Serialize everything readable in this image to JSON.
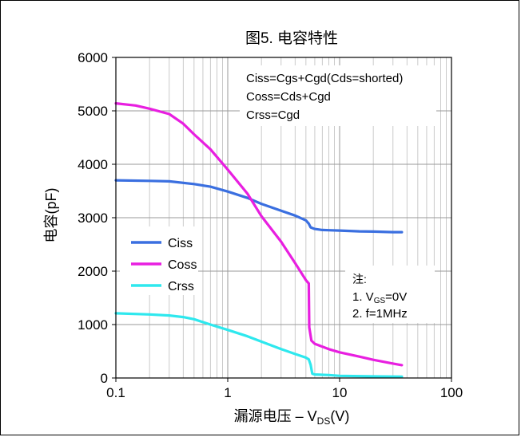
{
  "chart_data": {
    "type": "line",
    "title": "图5. 电容特性",
    "xlabel": "漏源电压  – V",
    "xlabel_sub": "DS",
    "xlabel_tail": "(V)",
    "ylabel": "电容(pF)",
    "x_scale": "log",
    "xlim": [
      0.1,
      100
    ],
    "ylim": [
      0,
      6000
    ],
    "x_ticks": [
      0.1,
      1,
      10,
      100
    ],
    "x_tick_labels": [
      "0.1",
      "1",
      "10",
      "100"
    ],
    "y_ticks": [
      0,
      1000,
      2000,
      3000,
      4000,
      5000,
      6000
    ],
    "y_tick_labels": [
      "0",
      "1000",
      "2000",
      "3000",
      "4000",
      "5000",
      "6000"
    ],
    "grid": true,
    "legend_position": "left-lower",
    "formulas": [
      "Ciss=Cgs+Cgd(Cds=shorted)",
      "Coss=Cds+Cgd",
      "Crss=Cgd"
    ],
    "note": {
      "heading": "注:",
      "line1_prefix": "1. V",
      "line1_sub": "GS",
      "line1_suffix": "=0V",
      "line2": "2. f=1MHz"
    },
    "series": [
      {
        "name": "Ciss",
        "color": "#3a6fe0",
        "points": [
          [
            0.1,
            3700
          ],
          [
            0.2,
            3690
          ],
          [
            0.3,
            3680
          ],
          [
            0.5,
            3630
          ],
          [
            0.7,
            3580
          ],
          [
            1,
            3490
          ],
          [
            1.5,
            3370
          ],
          [
            2,
            3260
          ],
          [
            3,
            3130
          ],
          [
            4,
            3040
          ],
          [
            5,
            2950
          ],
          [
            5.3,
            2890
          ],
          [
            5.5,
            2820
          ],
          [
            6,
            2790
          ],
          [
            7,
            2770
          ],
          [
            8,
            2765
          ],
          [
            10,
            2760
          ],
          [
            15,
            2745
          ],
          [
            20,
            2740
          ],
          [
            30,
            2730
          ],
          [
            36,
            2730
          ]
        ]
      },
      {
        "name": "Coss",
        "color": "#e81fe0",
        "points": [
          [
            0.1,
            5140
          ],
          [
            0.15,
            5100
          ],
          [
            0.2,
            5040
          ],
          [
            0.3,
            4940
          ],
          [
            0.4,
            4760
          ],
          [
            0.5,
            4560
          ],
          [
            0.7,
            4280
          ],
          [
            1,
            3900
          ],
          [
            1.5,
            3450
          ],
          [
            2,
            3030
          ],
          [
            3,
            2550
          ],
          [
            4,
            2150
          ],
          [
            5,
            1830
          ],
          [
            5.3,
            1770
          ],
          [
            5.35,
            950
          ],
          [
            5.6,
            700
          ],
          [
            6,
            640
          ],
          [
            8,
            540
          ],
          [
            10,
            480
          ],
          [
            15,
            400
          ],
          [
            20,
            340
          ],
          [
            30,
            270
          ],
          [
            36,
            240
          ]
        ]
      },
      {
        "name": "Crss",
        "color": "#2ee8ee",
        "points": [
          [
            0.1,
            1210
          ],
          [
            0.2,
            1190
          ],
          [
            0.3,
            1170
          ],
          [
            0.4,
            1140
          ],
          [
            0.5,
            1100
          ],
          [
            0.7,
            1000
          ],
          [
            1,
            900
          ],
          [
            1.5,
            780
          ],
          [
            2,
            680
          ],
          [
            3,
            540
          ],
          [
            4,
            450
          ],
          [
            5,
            380
          ],
          [
            5.3,
            350
          ],
          [
            5.5,
            250
          ],
          [
            5.7,
            80
          ],
          [
            6,
            65
          ],
          [
            8,
            55
          ],
          [
            10,
            40
          ],
          [
            20,
            30
          ],
          [
            36,
            25
          ]
        ]
      }
    ]
  }
}
